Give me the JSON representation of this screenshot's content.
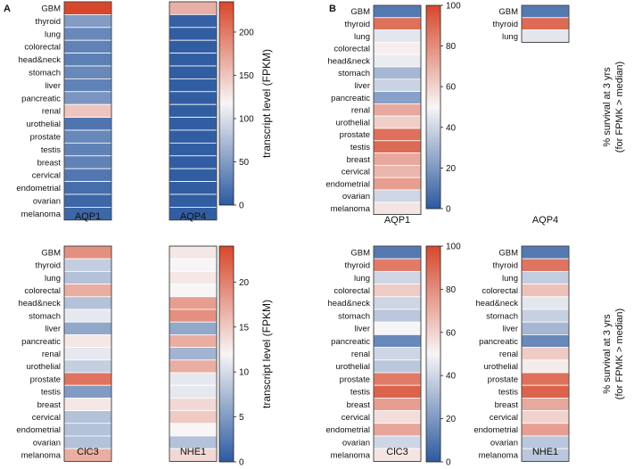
{
  "panel_labels": [
    "A",
    "B"
  ],
  "color_scale": {
    "low": "#2c5aa0",
    "mid": "#f7f5f6",
    "high": "#d7472b"
  },
  "tissues_full": [
    "GBM",
    "thyroid",
    "lung",
    "colorectal",
    "head&neck",
    "stomach",
    "liver",
    "pancreatic",
    "renal",
    "urothelial",
    "prostate",
    "testis",
    "breast",
    "cervical",
    "endometrial",
    "ovarian",
    "melanoma"
  ],
  "tissues_short": [
    "GBM",
    "thyroid",
    "lung"
  ],
  "chart_data": [
    {
      "id": "A-top",
      "type": "heatmap",
      "panel": "A",
      "rows": "tissues_full",
      "columns": [
        {
          "name": "AQP1",
          "values": [
            235,
            50,
            35,
            30,
            28,
            35,
            30,
            45,
            150,
            20,
            35,
            30,
            30,
            22,
            15,
            10,
            10
          ]
        },
        {
          "name": "AQP4",
          "values": [
            165,
            5,
            3,
            3,
            3,
            3,
            3,
            3,
            3,
            3,
            3,
            3,
            3,
            3,
            3,
            3,
            3
          ]
        }
      ],
      "range": [
        0,
        235
      ],
      "colorbar": {
        "ticks": [
          0,
          50,
          100,
          150,
          200
        ],
        "label": "transcript level (FPKM)"
      }
    },
    {
      "id": "A-bottom",
      "type": "heatmap",
      "panel": "A",
      "rows": "tissues_full",
      "columns": [
        {
          "name": "ClC3",
          "values": [
            19,
            9,
            8,
            17,
            8,
            11,
            6,
            13,
            11,
            9,
            21,
            5,
            13,
            8,
            8,
            8,
            17
          ]
        },
        {
          "name": "NHE1",
          "values": [
            13,
            12,
            13,
            12,
            18,
            19,
            6,
            17,
            7,
            17,
            11,
            11,
            14,
            15,
            12,
            8,
            14
          ]
        }
      ],
      "range": [
        0,
        24
      ],
      "colorbar": {
        "ticks": [
          0,
          5,
          10,
          15,
          20
        ],
        "label": "transcript level (FPKM)"
      }
    },
    {
      "id": "B-top",
      "type": "heatmap",
      "panel": "B",
      "columns": [
        {
          "name": "AQP1",
          "rows": "tissues_full",
          "values": [
            10,
            88,
            45,
            52,
            47,
            30,
            39,
            23,
            72,
            61,
            88,
            90,
            72,
            68,
            75,
            40,
            55
          ]
        },
        {
          "name": "AQP4",
          "rows": "tissues_short",
          "values": [
            10,
            90,
            45
          ]
        }
      ],
      "range": [
        0,
        100
      ],
      "colorbar": {
        "ticks": [
          0,
          20,
          40,
          60,
          80,
          100
        ],
        "label": [
          "% survival at 3 yrs",
          "(for FPMK > median)"
        ]
      }
    },
    {
      "id": "B-bottom",
      "type": "heatmap",
      "panel": "B",
      "rows": "tissues_full",
      "columns": [
        {
          "name": "ClC3",
          "values": [
            10,
            85,
            40,
            62,
            40,
            35,
            50,
            15,
            40,
            35,
            85,
            92,
            75,
            57,
            73,
            40,
            55
          ]
        },
        {
          "name": "NHE1",
          "values": [
            10,
            87,
            37,
            65,
            45,
            38,
            30,
            15,
            62,
            53,
            88,
            92,
            72,
            60,
            75,
            35,
            35
          ]
        }
      ],
      "range": [
        0,
        100
      ],
      "colorbar": {
        "ticks": [
          0,
          20,
          40,
          60,
          80,
          100
        ],
        "label": [
          "% survival at 3 yrs",
          "(for FPMK > median)"
        ]
      }
    }
  ]
}
